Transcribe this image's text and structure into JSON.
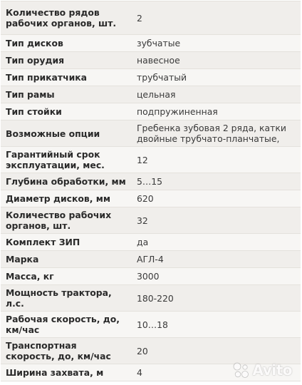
{
  "specs": [
    {
      "label": "Количество рядов рабочих органов, шт.",
      "value": "2",
      "h": 47
    },
    {
      "label": "Тип дисков",
      "value": "зубчатые",
      "h": 24
    },
    {
      "label": "Тип орудия",
      "value": "навесное",
      "h": 24
    },
    {
      "label": "Тип прикатчика",
      "value": "трубчатый",
      "h": 24
    },
    {
      "label": "Тип рамы",
      "value": "цельная",
      "h": 24
    },
    {
      "label": "Тип стойки",
      "value": "подпружиненная",
      "h": 24
    },
    {
      "label": "Возможные опции",
      "value": "Гребенка зубовая 2 ряда, катки двойные трубчато-планчатые,",
      "h": 37
    },
    {
      "label": "Гарантийный срок эксплуатации, мес.",
      "value": "12",
      "h": 37
    },
    {
      "label": "Глубина обработки, мм",
      "value": "5…15",
      "h": 24
    },
    {
      "label": "Диаметр дисков, мм",
      "value": "620",
      "h": 24
    },
    {
      "label": "Количество рабочих органов, шт.",
      "value": "32",
      "h": 37
    },
    {
      "label": "Комплект ЗИП",
      "value": "да",
      "h": 24
    },
    {
      "label": "Марка",
      "value": "АГЛ-4",
      "h": 24
    },
    {
      "label": "Масса, кг",
      "value": "3000",
      "h": 24
    },
    {
      "label": "Мощность трактора, л.с.",
      "value": "180-220",
      "h": 37
    },
    {
      "label": "Рабочая скорость, до, км/час",
      "value": "10…18",
      "h": 37
    },
    {
      "label": "Транспортная скорость, до, км/час",
      "value": "20",
      "h": 37
    },
    {
      "label": "Ширина захвата, м",
      "value": "4",
      "h": 24
    }
  ],
  "watermark": {
    "text": "Avito",
    "icon": "avito-logo-icon"
  }
}
